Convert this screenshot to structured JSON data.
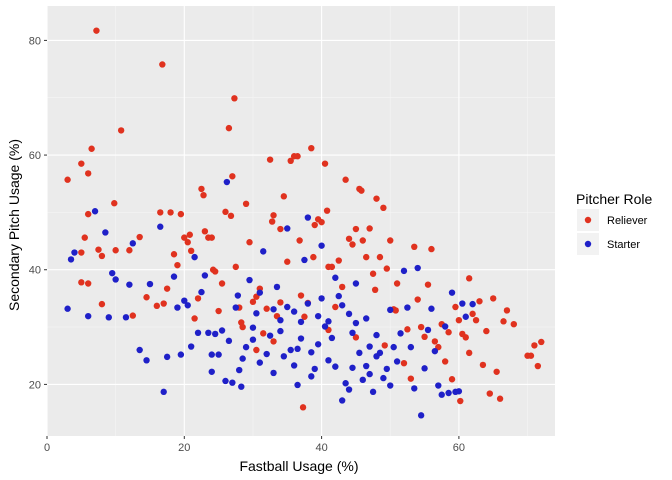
{
  "chart_data": {
    "type": "scatter",
    "xlabel": "Fastball Usage (%)",
    "ylabel": "Secondary Pitch Usage (%)",
    "xlim": [
      0,
      74
    ],
    "ylim": [
      11,
      86
    ],
    "x_ticks": [
      0,
      20,
      40,
      60
    ],
    "y_ticks": [
      20,
      40,
      60,
      80
    ],
    "grid": true,
    "legend_title": "Pitcher Role",
    "legend_position": "right",
    "series": [
      {
        "name": "Reliever",
        "color": "#e0321f",
        "points": [
          [
            3,
            55.7
          ],
          [
            5,
            58.5
          ],
          [
            6,
            56.8
          ],
          [
            6.5,
            61.1
          ],
          [
            7.2,
            81.7
          ],
          [
            5,
            43
          ],
          [
            5.5,
            45.6
          ],
          [
            6,
            49.7
          ],
          [
            7.5,
            43.5
          ],
          [
            8,
            42.4
          ],
          [
            5,
            37.8
          ],
          [
            6,
            37.6
          ],
          [
            8,
            34
          ],
          [
            9.8,
            51.6
          ],
          [
            10,
            43.4
          ],
          [
            10.8,
            64.3
          ],
          [
            12,
            43.4
          ],
          [
            12.5,
            32
          ],
          [
            13.5,
            45.7
          ],
          [
            16,
            33.7
          ],
          [
            16.5,
            50
          ],
          [
            16.8,
            75.8
          ],
          [
            17,
            34.1
          ],
          [
            17.5,
            36.7
          ],
          [
            18,
            50
          ],
          [
            18.5,
            42.7
          ],
          [
            19,
            40.8
          ],
          [
            19.5,
            49.7
          ],
          [
            20,
            45.6
          ],
          [
            20.5,
            44.8
          ],
          [
            20.8,
            46.1
          ],
          [
            21,
            43.3
          ],
          [
            21.5,
            31.5
          ],
          [
            22,
            35
          ],
          [
            22.5,
            54.1
          ],
          [
            22.8,
            53
          ],
          [
            23,
            46.7
          ],
          [
            23.5,
            45.6
          ],
          [
            24,
            45.6
          ],
          [
            24.2,
            40
          ],
          [
            24.5,
            39.7
          ],
          [
            25,
            32.8
          ],
          [
            25.5,
            37.6
          ],
          [
            26,
            50.1
          ],
          [
            26.5,
            64.7
          ],
          [
            26.8,
            49.4
          ],
          [
            27,
            56.3
          ],
          [
            27.3,
            69.9
          ],
          [
            27.5,
            40.5
          ],
          [
            28,
            33.4
          ],
          [
            28.5,
            30
          ],
          [
            29,
            51.5
          ],
          [
            29.5,
            44.8
          ],
          [
            30,
            34.4
          ],
          [
            30.5,
            35.3
          ],
          [
            31,
            36.7
          ],
          [
            31.5,
            28.9
          ],
          [
            32,
            33.2
          ],
          [
            32.5,
            59.2
          ],
          [
            32.8,
            48.4
          ],
          [
            33,
            49.5
          ],
          [
            33.5,
            31.9
          ],
          [
            34,
            47.1
          ],
          [
            34.5,
            52.8
          ],
          [
            35,
            41.4
          ],
          [
            35.5,
            59
          ],
          [
            36,
            59.8
          ],
          [
            36.5,
            59.8
          ],
          [
            36.8,
            45.1
          ],
          [
            37,
            35.5
          ],
          [
            37.3,
            16
          ],
          [
            37.5,
            31.8
          ],
          [
            38,
            34.2
          ],
          [
            38.5,
            61.2
          ],
          [
            38.8,
            42.2
          ],
          [
            39,
            47.8
          ],
          [
            39.5,
            48.8
          ],
          [
            40,
            48.3
          ],
          [
            40.5,
            58.5
          ],
          [
            40.8,
            50.3
          ],
          [
            41,
            40.5
          ],
          [
            41.5,
            40.5
          ],
          [
            42,
            33.5
          ],
          [
            42.5,
            41.6
          ],
          [
            43,
            37
          ],
          [
            43.5,
            55.7
          ],
          [
            44,
            45.4
          ],
          [
            44.5,
            44.4
          ],
          [
            45,
            47.1
          ],
          [
            45.5,
            54.1
          ],
          [
            45.8,
            53.8
          ],
          [
            46,
            45.1
          ],
          [
            46.5,
            42.2
          ],
          [
            47,
            47.2
          ],
          [
            47.5,
            39.3
          ],
          [
            47.8,
            36.5
          ],
          [
            48,
            52.4
          ],
          [
            48.5,
            42.2
          ],
          [
            49,
            50.8
          ],
          [
            49.5,
            40.2
          ],
          [
            50,
            45.1
          ],
          [
            50.5,
            33.1
          ],
          [
            50.8,
            32.9
          ],
          [
            51,
            37.6
          ],
          [
            52,
            23.7
          ],
          [
            52.5,
            29.6
          ],
          [
            53,
            21
          ],
          [
            53.5,
            44
          ],
          [
            54,
            34.8
          ],
          [
            54.5,
            30
          ],
          [
            55,
            28.3
          ],
          [
            55.5,
            37.4
          ],
          [
            56,
            43.6
          ],
          [
            56.5,
            27.5
          ],
          [
            57,
            26.5
          ],
          [
            57.5,
            30.5
          ],
          [
            58,
            24
          ],
          [
            58.5,
            29.1
          ],
          [
            59,
            20.9
          ],
          [
            59.5,
            33.5
          ],
          [
            60,
            31.2
          ],
          [
            60.5,
            28.8
          ],
          [
            61,
            28.2
          ],
          [
            61.5,
            38.5
          ],
          [
            62,
            32.3
          ],
          [
            62.5,
            31.2
          ],
          [
            63,
            34.5
          ],
          [
            63.5,
            23.4
          ],
          [
            64,
            29.3
          ],
          [
            64.5,
            18.4
          ],
          [
            65,
            35
          ],
          [
            65.5,
            22.2
          ],
          [
            66,
            17.5
          ],
          [
            66.5,
            31
          ],
          [
            67,
            32.9
          ],
          [
            68,
            30.5
          ],
          [
            70,
            25
          ],
          [
            70.5,
            25
          ],
          [
            71,
            26.8
          ],
          [
            71.5,
            23.2
          ],
          [
            72,
            27.4
          ],
          [
            61.5,
            25.5
          ],
          [
            60.2,
            17.1
          ],
          [
            41,
            29.5
          ],
          [
            30.5,
            26
          ],
          [
            28.3,
            30.8
          ],
          [
            49.2,
            26.8
          ],
          [
            45,
            28.2
          ],
          [
            33,
            27.5
          ],
          [
            14.5,
            35.2
          ],
          [
            34,
            34.3
          ]
        ]
      },
      {
        "name": "Starter",
        "color": "#1f20c8",
        "points": [
          [
            3,
            33.2
          ],
          [
            3.5,
            41.8
          ],
          [
            4,
            43
          ],
          [
            6,
            31.9
          ],
          [
            7,
            50.2
          ],
          [
            8.5,
            46.5
          ],
          [
            9,
            31.7
          ],
          [
            9.5,
            39.4
          ],
          [
            10,
            38.3
          ],
          [
            11.5,
            31.7
          ],
          [
            12,
            37.4
          ],
          [
            12.5,
            44.6
          ],
          [
            13.5,
            26
          ],
          [
            14.5,
            24.2
          ],
          [
            15,
            37.5
          ],
          [
            16.5,
            47.5
          ],
          [
            17,
            18.7
          ],
          [
            17.5,
            24.8
          ],
          [
            18.5,
            38.8
          ],
          [
            19,
            33.4
          ],
          [
            19.5,
            25.2
          ],
          [
            20.5,
            33.8
          ],
          [
            21,
            26.6
          ],
          [
            21.5,
            42.2
          ],
          [
            22,
            29
          ],
          [
            22.5,
            36.1
          ],
          [
            23,
            39
          ],
          [
            23.5,
            29
          ],
          [
            24,
            25.2
          ],
          [
            24.5,
            28.8
          ],
          [
            25,
            25.2
          ],
          [
            25.5,
            29.4
          ],
          [
            26,
            20.6
          ],
          [
            26.2,
            55.3
          ],
          [
            26.5,
            27.6
          ],
          [
            27,
            20.3
          ],
          [
            27.5,
            33.4
          ],
          [
            27.8,
            35.5
          ],
          [
            28,
            22.5
          ],
          [
            28.3,
            19.6
          ],
          [
            28.5,
            24.5
          ],
          [
            29,
            26.5
          ],
          [
            29.5,
            38.2
          ],
          [
            30,
            29.9
          ],
          [
            30.5,
            32.4
          ],
          [
            31,
            23.8
          ],
          [
            31.5,
            43.2
          ],
          [
            32,
            25.3
          ],
          [
            32.5,
            28.5
          ],
          [
            33,
            22
          ],
          [
            33.5,
            37
          ],
          [
            34,
            31.2
          ],
          [
            34.5,
            24.9
          ],
          [
            35,
            33.5
          ],
          [
            35.5,
            26
          ],
          [
            36,
            23.3
          ],
          [
            36.5,
            19.9
          ],
          [
            37,
            30.9
          ],
          [
            37.5,
            41.7
          ],
          [
            38,
            34.1
          ],
          [
            38.5,
            25.6
          ],
          [
            39,
            22.7
          ],
          [
            39.5,
            27
          ],
          [
            40,
            44.2
          ],
          [
            40.5,
            30.1
          ],
          [
            41,
            24.2
          ],
          [
            41.5,
            28.1
          ],
          [
            42,
            23.1
          ],
          [
            42.5,
            35.4
          ],
          [
            43,
            17.2
          ],
          [
            43.5,
            20.2
          ],
          [
            44,
            19.1
          ],
          [
            44.5,
            22.9
          ],
          [
            45,
            30.7
          ],
          [
            45.5,
            25.5
          ],
          [
            46,
            20.8
          ],
          [
            46.5,
            23.2
          ],
          [
            47,
            26.6
          ],
          [
            47.5,
            18.7
          ],
          [
            48,
            28.6
          ],
          [
            48.5,
            25.5
          ],
          [
            49,
            21.1
          ],
          [
            49.5,
            22.7
          ],
          [
            50,
            19.8
          ],
          [
            50.5,
            26.5
          ],
          [
            51,
            24
          ],
          [
            51.5,
            28.9
          ],
          [
            52,
            39.8
          ],
          [
            52.5,
            33.4
          ],
          [
            53,
            26.5
          ],
          [
            53.5,
            19.3
          ],
          [
            54,
            40.3
          ],
          [
            54.5,
            14.6
          ],
          [
            55,
            22.8
          ],
          [
            55.5,
            29.5
          ],
          [
            56,
            33.2
          ],
          [
            56.5,
            25.8
          ],
          [
            57,
            19.8
          ],
          [
            57.5,
            18.2
          ],
          [
            58,
            30.1
          ],
          [
            58.5,
            18.5
          ],
          [
            59,
            36
          ],
          [
            59.5,
            18.7
          ],
          [
            60,
            18.8
          ],
          [
            60.5,
            34.1
          ],
          [
            61,
            31.8
          ],
          [
            62,
            34
          ],
          [
            35,
            47.2
          ],
          [
            38,
            49.1
          ],
          [
            31,
            36
          ],
          [
            43,
            33.8
          ],
          [
            40,
            35
          ],
          [
            37,
            28
          ],
          [
            45,
            37.6
          ],
          [
            44,
            32.3
          ],
          [
            42,
            38.6
          ],
          [
            39.5,
            31.9
          ],
          [
            36.5,
            26.2
          ],
          [
            34,
            29.3
          ],
          [
            46.5,
            31.5
          ],
          [
            48,
            24.9
          ],
          [
            41,
            31
          ],
          [
            33,
            33.1
          ],
          [
            30,
            27.8
          ],
          [
            50,
            33
          ],
          [
            47,
            21.8
          ],
          [
            44.5,
            29
          ],
          [
            38.5,
            21.4
          ],
          [
            36,
            32.7
          ],
          [
            24,
            22.2
          ],
          [
            20,
            34.6
          ]
        ]
      }
    ]
  }
}
